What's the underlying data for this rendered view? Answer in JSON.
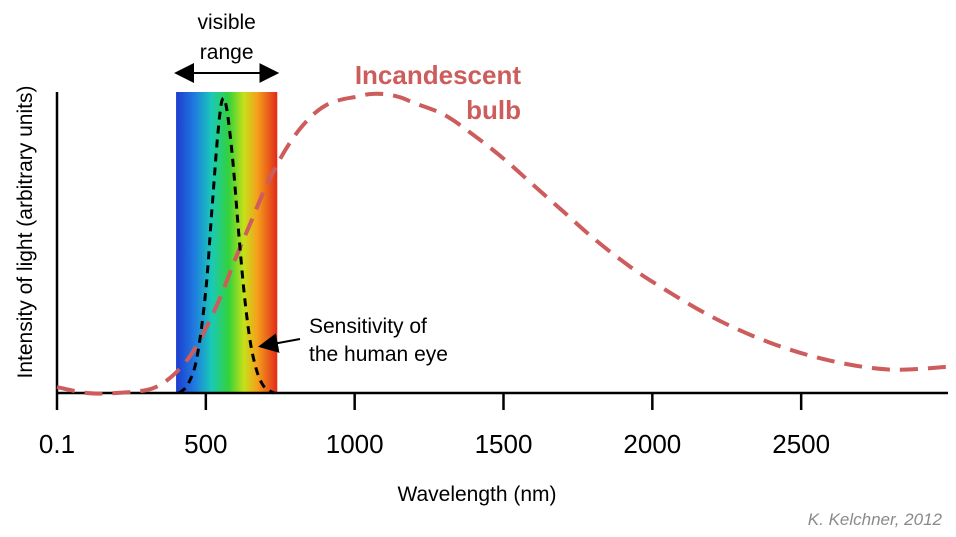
{
  "chart_data": {
    "type": "line",
    "xlabel": "Wavelength (nm)",
    "ylabel": "Intensity of light (arbitrary units)",
    "xlim": [
      0,
      3000
    ],
    "ylim": [
      0,
      1
    ],
    "x_ticks": [
      {
        "value": 0,
        "label": "0.1"
      },
      {
        "value": 500,
        "label": "500"
      },
      {
        "value": 1000,
        "label": "1000"
      },
      {
        "value": 1500,
        "label": "1500"
      },
      {
        "value": 2000,
        "label": "2000"
      },
      {
        "value": 2500,
        "label": "2500"
      }
    ],
    "grid": false,
    "visible_band": {
      "label_line1": "visible",
      "label_line2": "range",
      "from": 400,
      "to": 740
    },
    "series": [
      {
        "name": "Incandescent bulb",
        "label_line1": "Incandescent",
        "label_line2": "bulb",
        "color": "#cd5c5c",
        "style": "dashed",
        "x": [
          0,
          100,
          200,
          300,
          350,
          400,
          450,
          500,
          550,
          600,
          650,
          700,
          750,
          800,
          850,
          900,
          950,
          1000,
          1050,
          1100,
          1150,
          1200,
          1300,
          1400,
          1500,
          1600,
          1700,
          1800,
          1900,
          2000,
          2200,
          2400,
          2600,
          2800,
          3000
        ],
        "y": [
          0.02,
          0.0,
          0.0,
          0.01,
          0.03,
          0.07,
          0.13,
          0.22,
          0.33,
          0.46,
          0.58,
          0.7,
          0.8,
          0.88,
          0.94,
          0.98,
          1.0,
          1.01,
          1.02,
          1.02,
          1.01,
          0.99,
          0.95,
          0.88,
          0.8,
          0.71,
          0.62,
          0.53,
          0.45,
          0.38,
          0.26,
          0.17,
          0.11,
          0.08,
          0.09
        ]
      },
      {
        "name": "Sensitivity of the human eye",
        "label_line1": "Sensitivity of",
        "label_line2": "the human eye",
        "color": "#000000",
        "style": "dashed",
        "x": [
          410,
          440,
          470,
          500,
          520,
          540,
          555,
          570,
          590,
          610,
          630,
          650,
          670,
          690,
          710,
          730
        ],
        "y": [
          0.0,
          0.03,
          0.12,
          0.35,
          0.62,
          0.88,
          1.0,
          0.97,
          0.8,
          0.55,
          0.33,
          0.17,
          0.08,
          0.03,
          0.01,
          0.0
        ]
      }
    ]
  },
  "credit": "K. Kelchner, 2012"
}
